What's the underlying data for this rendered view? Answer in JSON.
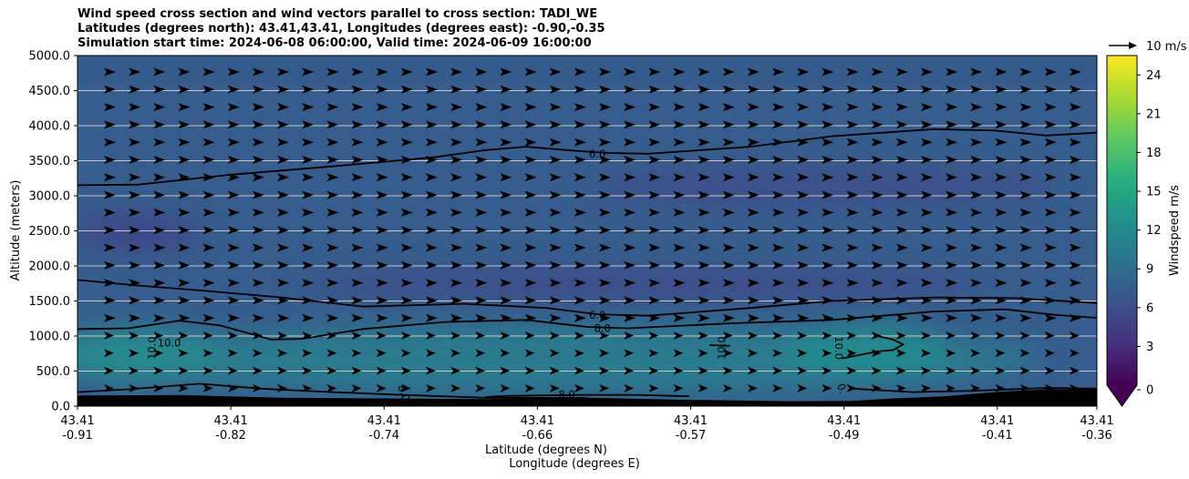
{
  "title": {
    "line1": "Wind speed cross section and wind vectors parallel to cross section: TADI_WE",
    "line2": "Latitudes (degrees north): 43.41,43.41, Longitudes (degrees east): -0.90,-0.35",
    "line3": "Simulation start time: 2024-06-08 06:00:00, Valid time: 2024-06-09 16:00:00"
  },
  "chart_data": {
    "type": "heatmap",
    "subtype": "filled-contour cross section with wind vectors",
    "ylabel": "Altitude (meters)",
    "xlabel_line1": "Latitude (degrees N)",
    "xlabel_line2": "Longitude (degrees E)",
    "ylim": [
      0,
      5000
    ],
    "y_ticks": [
      "0.0",
      "500.0",
      "1000.0",
      "1500.0",
      "2000.0",
      "2500.0",
      "3000.0",
      "3500.0",
      "4000.0",
      "4500.0",
      "5000.0"
    ],
    "x_ticks": [
      {
        "lat": "43.41",
        "lon": "-0.91"
      },
      {
        "lat": "43.41",
        "lon": "-0.82"
      },
      {
        "lat": "43.41",
        "lon": "-0.74"
      },
      {
        "lat": "43.41",
        "lon": "-0.66"
      },
      {
        "lat": "43.41",
        "lon": "-0.57"
      },
      {
        "lat": "43.41",
        "lon": "-0.49"
      },
      {
        "lat": "43.41",
        "lon": "-0.41"
      },
      {
        "lat": "43.41",
        "lon": "-0.36"
      }
    ],
    "colorbar": {
      "label": "Windspeed m/s",
      "range": [
        0,
        25.5
      ],
      "ticks": [
        "0",
        "3",
        "6",
        "9",
        "12",
        "15",
        "18",
        "21",
        "24"
      ]
    },
    "quiver_key": "10 m/s",
    "contour_labels": [
      {
        "text": "6.0",
        "xf": 0.51,
        "alt": 3600,
        "rot": 0
      },
      {
        "text": "6.0",
        "xf": 0.51,
        "alt": 1300,
        "rot": 0
      },
      {
        "text": "8.0",
        "xf": 0.515,
        "alt": 1110,
        "rot": 0
      },
      {
        "text": "10.0",
        "xf": 0.09,
        "alt": 905,
        "rot": 0
      },
      {
        "text": "10.0",
        "xf": 0.073,
        "alt": 830,
        "rot": -90
      },
      {
        "text": "10.0",
        "xf": 0.632,
        "alt": 830,
        "rot": -90
      },
      {
        "text": "10.0",
        "xf": 0.747,
        "alt": 830,
        "rot": 90
      },
      {
        "text": "8.0",
        "xf": 0.32,
        "alt": 190,
        "rot": 70
      },
      {
        "text": "8.0",
        "xf": 0.48,
        "alt": 170,
        "rot": 0
      },
      {
        "text": "0.",
        "xf": 0.75,
        "alt": 250,
        "rot": 70
      }
    ],
    "contours": [
      {
        "level": 6,
        "points": [
          [
            0,
            3150
          ],
          [
            0.06,
            3160
          ],
          [
            0.15,
            3300
          ],
          [
            0.25,
            3420
          ],
          [
            0.35,
            3550
          ],
          [
            0.4,
            3650
          ],
          [
            0.44,
            3700
          ],
          [
            0.49,
            3640
          ],
          [
            0.52,
            3610
          ],
          [
            0.56,
            3600
          ],
          [
            0.66,
            3700
          ],
          [
            0.74,
            3850
          ],
          [
            0.84,
            3950
          ],
          [
            0.9,
            3930
          ],
          [
            0.95,
            3860
          ],
          [
            1,
            3900
          ]
        ]
      },
      {
        "level": 6,
        "points": [
          [
            0,
            1800
          ],
          [
            0.06,
            1720
          ],
          [
            0.12,
            1650
          ],
          [
            0.2,
            1550
          ],
          [
            0.28,
            1420
          ],
          [
            0.38,
            1460
          ],
          [
            0.46,
            1400
          ],
          [
            0.51,
            1310
          ],
          [
            0.56,
            1290
          ],
          [
            0.66,
            1400
          ],
          [
            0.74,
            1500
          ],
          [
            0.84,
            1550
          ],
          [
            0.92,
            1540
          ],
          [
            1,
            1470
          ]
        ]
      },
      {
        "level": 8,
        "points": [
          [
            0,
            1100
          ],
          [
            0.05,
            1110
          ],
          [
            0.1,
            1220
          ],
          [
            0.14,
            1150
          ],
          [
            0.19,
            950
          ],
          [
            0.22,
            960
          ],
          [
            0.28,
            1100
          ],
          [
            0.36,
            1200
          ],
          [
            0.44,
            1230
          ],
          [
            0.5,
            1130
          ],
          [
            0.54,
            1110
          ],
          [
            0.64,
            1180
          ],
          [
            0.74,
            1230
          ],
          [
            0.84,
            1350
          ],
          [
            0.91,
            1380
          ],
          [
            0.96,
            1300
          ],
          [
            1,
            1260
          ]
        ]
      },
      {
        "level": 10,
        "points": [
          [
            0.62,
            870
          ],
          [
            0.64,
            860
          ]
        ]
      },
      {
        "level": 10,
        "points": [
          [
            0.785,
            1000
          ],
          [
            0.8,
            950
          ],
          [
            0.81,
            880
          ],
          [
            0.8,
            800
          ],
          [
            0.785,
            780
          ],
          [
            0.75,
            680
          ]
        ]
      },
      {
        "level": 8,
        "points": [
          [
            0,
            200
          ],
          [
            0.05,
            240
          ],
          [
            0.12,
            320
          ],
          [
            0.18,
            250
          ],
          [
            0.25,
            200
          ],
          [
            0.31,
            165
          ],
          [
            0.4,
            120
          ],
          [
            0.5,
            115
          ]
        ]
      },
      {
        "level": 8,
        "points": [
          [
            0.4,
            130
          ],
          [
            0.42,
            145
          ],
          [
            0.49,
            160
          ],
          [
            0.55,
            160
          ],
          [
            0.6,
            140
          ]
        ]
      },
      {
        "level": 8,
        "points": [
          [
            0.76,
            250
          ],
          [
            0.82,
            200
          ],
          [
            0.88,
            220
          ],
          [
            0.95,
            260
          ],
          [
            1,
            250
          ]
        ]
      }
    ],
    "terrain": [
      [
        0,
        150
      ],
      [
        0.1,
        160
      ],
      [
        0.2,
        120
      ],
      [
        0.3,
        110
      ],
      [
        0.4,
        100
      ],
      [
        0.5,
        120
      ],
      [
        0.6,
        90
      ],
      [
        0.7,
        70
      ],
      [
        0.76,
        75
      ],
      [
        0.8,
        110
      ],
      [
        0.85,
        140
      ],
      [
        0.9,
        200
      ],
      [
        0.95,
        240
      ],
      [
        1,
        240
      ]
    ]
  }
}
